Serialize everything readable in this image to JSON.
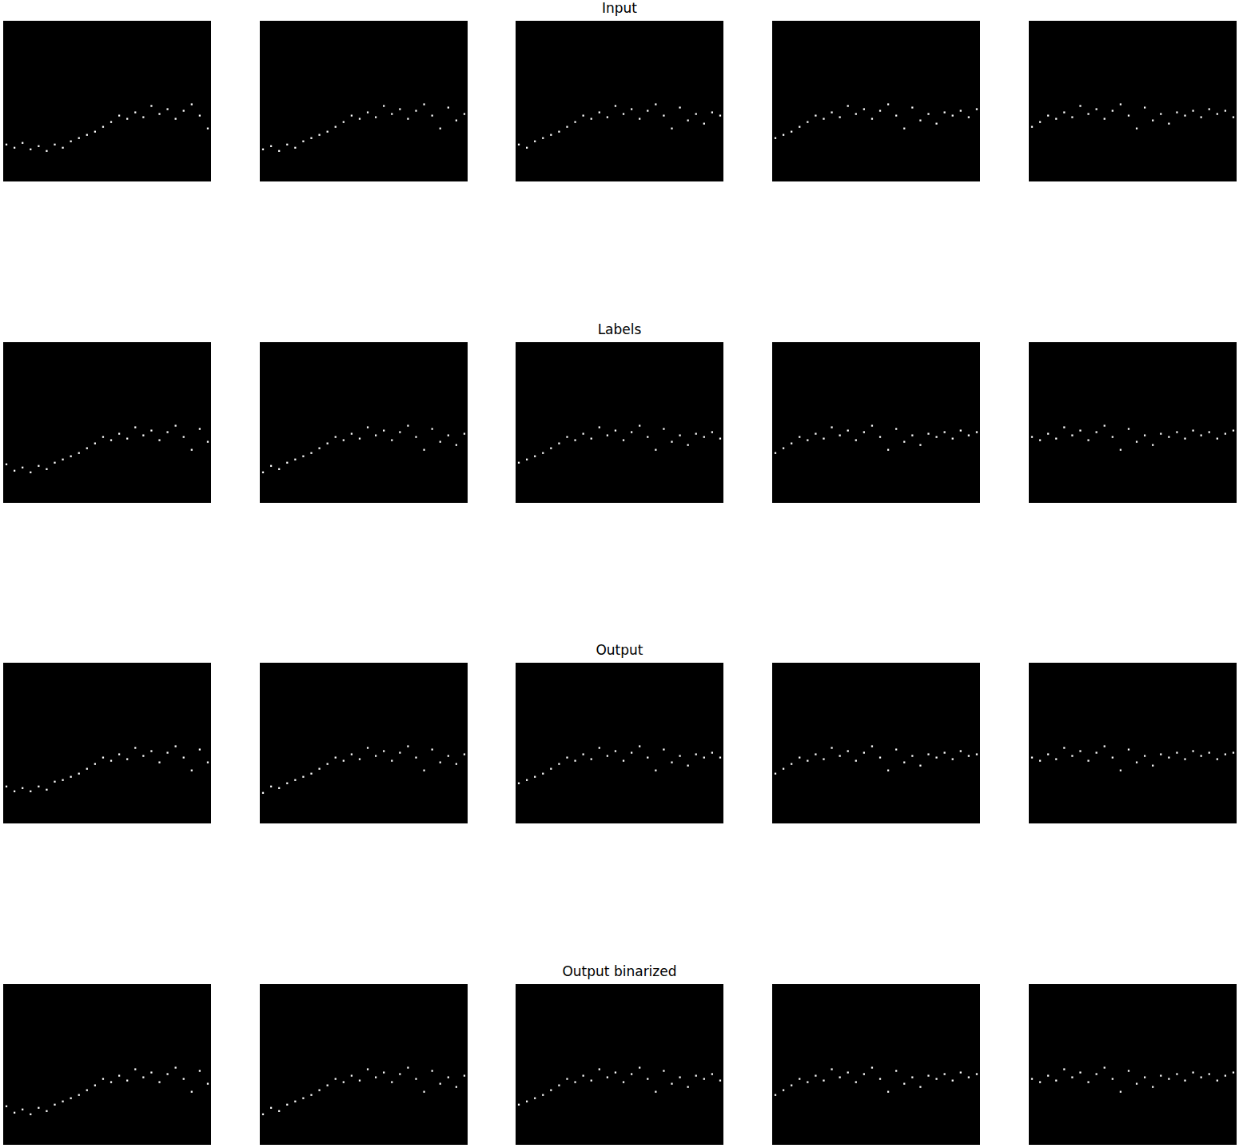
{
  "chart_data": [
    {
      "type": "scatter",
      "x": [
        0,
        5,
        10,
        15,
        20,
        25,
        30,
        35,
        40,
        45,
        50,
        55,
        60,
        65,
        70,
        75,
        80,
        85,
        90,
        95,
        100,
        105,
        110,
        115,
        120,
        125
      ],
      "values": [
        23,
        21,
        24,
        20,
        22,
        19,
        23,
        21,
        25,
        27,
        29,
        31,
        34,
        37,
        41,
        39,
        43,
        40,
        47,
        42,
        45,
        39,
        44,
        48,
        41,
        33
      ],
      "xlim": [
        -2,
        127
      ],
      "ylim": [
        0,
        100
      ],
      "color": "#ffffff",
      "marker": "square",
      "tick_labels": false
    },
    {
      "type": "scatter",
      "x": [
        0,
        5,
        10,
        15,
        20,
        25,
        30,
        35,
        40,
        45,
        50,
        55,
        60,
        65,
        70,
        75,
        80,
        85,
        90,
        95,
        100,
        105,
        110,
        115,
        120,
        125
      ],
      "values": [
        20,
        22,
        19,
        23,
        21,
        25,
        27,
        29,
        31,
        34,
        37,
        41,
        39,
        43,
        40,
        47,
        42,
        45,
        39,
        44,
        48,
        41,
        33,
        46,
        38,
        42
      ],
      "xlim": [
        -2,
        127
      ],
      "ylim": [
        0,
        100
      ],
      "color": "#ffffff",
      "marker": "square",
      "tick_labels": false
    },
    {
      "type": "scatter",
      "title": "Input",
      "x": [
        0,
        5,
        10,
        15,
        20,
        25,
        30,
        35,
        40,
        45,
        50,
        55,
        60,
        65,
        70,
        75,
        80,
        85,
        90,
        95,
        100,
        105,
        110,
        115,
        120,
        125
      ],
      "values": [
        23,
        21,
        25,
        27,
        29,
        31,
        34,
        37,
        41,
        39,
        43,
        40,
        47,
        42,
        45,
        39,
        44,
        48,
        41,
        33,
        46,
        38,
        42,
        36,
        43,
        41
      ],
      "xlim": [
        -2,
        127
      ],
      "ylim": [
        0,
        100
      ],
      "color": "#ffffff",
      "marker": "square",
      "tick_labels": false
    },
    {
      "type": "scatter",
      "x": [
        0,
        5,
        10,
        15,
        20,
        25,
        30,
        35,
        40,
        45,
        50,
        55,
        60,
        65,
        70,
        75,
        80,
        85,
        90,
        95,
        100,
        105,
        110,
        115,
        120,
        125
      ],
      "values": [
        27,
        29,
        31,
        34,
        37,
        41,
        39,
        43,
        40,
        47,
        42,
        45,
        39,
        44,
        48,
        41,
        33,
        46,
        38,
        42,
        36,
        43,
        41,
        44,
        40,
        45
      ],
      "xlim": [
        -2,
        127
      ],
      "ylim": [
        0,
        100
      ],
      "color": "#ffffff",
      "marker": "square",
      "tick_labels": false
    },
    {
      "type": "scatter",
      "x": [
        0,
        5,
        10,
        15,
        20,
        25,
        30,
        35,
        40,
        45,
        50,
        55,
        60,
        65,
        70,
        75,
        80,
        85,
        90,
        95,
        100,
        105,
        110,
        115,
        120,
        125
      ],
      "values": [
        34,
        37,
        41,
        39,
        43,
        40,
        47,
        42,
        45,
        39,
        44,
        48,
        41,
        33,
        46,
        38,
        42,
        36,
        43,
        41,
        44,
        40,
        45,
        42,
        44,
        40
      ],
      "xlim": [
        -2,
        127
      ],
      "ylim": [
        0,
        100
      ],
      "color": "#ffffff",
      "marker": "square",
      "tick_labels": false
    },
    {
      "type": "scatter",
      "x": [
        0,
        5,
        10,
        15,
        20,
        25,
        30,
        35,
        40,
        45,
        50,
        55,
        60,
        65,
        70,
        75,
        80,
        85,
        90,
        95,
        100,
        105,
        110,
        115,
        120,
        125
      ],
      "values": [
        24,
        20,
        22,
        19,
        23,
        21,
        25,
        27,
        29,
        31,
        34,
        37,
        41,
        39,
        43,
        40,
        47,
        42,
        45,
        39,
        44,
        48,
        41,
        33,
        46,
        38
      ],
      "xlim": [
        -2,
        127
      ],
      "ylim": [
        0,
        100
      ],
      "color": "#ffffff",
      "marker": "square",
      "tick_labels": false
    },
    {
      "type": "scatter",
      "x": [
        0,
        5,
        10,
        15,
        20,
        25,
        30,
        35,
        40,
        45,
        50,
        55,
        60,
        65,
        70,
        75,
        80,
        85,
        90,
        95,
        100,
        105,
        110,
        115,
        120,
        125
      ],
      "values": [
        19,
        23,
        21,
        25,
        27,
        29,
        31,
        34,
        37,
        41,
        39,
        43,
        40,
        47,
        42,
        45,
        39,
        44,
        48,
        41,
        33,
        46,
        38,
        42,
        36,
        43
      ],
      "xlim": [
        -2,
        127
      ],
      "ylim": [
        0,
        100
      ],
      "color": "#ffffff",
      "marker": "square",
      "tick_labels": false
    },
    {
      "type": "scatter",
      "title": "Labels",
      "x": [
        0,
        5,
        10,
        15,
        20,
        25,
        30,
        35,
        40,
        45,
        50,
        55,
        60,
        65,
        70,
        75,
        80,
        85,
        90,
        95,
        100,
        105,
        110,
        115,
        120,
        125
      ],
      "values": [
        25,
        27,
        29,
        31,
        34,
        37,
        41,
        39,
        43,
        40,
        47,
        42,
        45,
        39,
        44,
        48,
        41,
        33,
        46,
        38,
        42,
        36,
        43,
        41,
        44,
        40
      ],
      "xlim": [
        -2,
        127
      ],
      "ylim": [
        0,
        100
      ],
      "color": "#ffffff",
      "marker": "square",
      "tick_labels": false
    },
    {
      "type": "scatter",
      "x": [
        0,
        5,
        10,
        15,
        20,
        25,
        30,
        35,
        40,
        45,
        50,
        55,
        60,
        65,
        70,
        75,
        80,
        85,
        90,
        95,
        100,
        105,
        110,
        115,
        120,
        125
      ],
      "values": [
        31,
        34,
        37,
        41,
        39,
        43,
        40,
        47,
        42,
        45,
        39,
        44,
        48,
        41,
        33,
        46,
        38,
        42,
        36,
        43,
        41,
        44,
        40,
        45,
        42,
        44
      ],
      "xlim": [
        -2,
        127
      ],
      "ylim": [
        0,
        100
      ],
      "color": "#ffffff",
      "marker": "square",
      "tick_labels": false
    },
    {
      "type": "scatter",
      "x": [
        0,
        5,
        10,
        15,
        20,
        25,
        30,
        35,
        40,
        45,
        50,
        55,
        60,
        65,
        70,
        75,
        80,
        85,
        90,
        95,
        100,
        105,
        110,
        115,
        120,
        125
      ],
      "values": [
        41,
        39,
        43,
        40,
        47,
        42,
        45,
        39,
        44,
        48,
        41,
        33,
        46,
        38,
        42,
        36,
        43,
        41,
        44,
        40,
        45,
        42,
        44,
        40,
        43,
        45
      ],
      "xlim": [
        -2,
        127
      ],
      "ylim": [
        0,
        100
      ],
      "color": "#ffffff",
      "marker": "square",
      "tick_labels": false
    },
    {
      "type": "scatter",
      "x": [
        0,
        5,
        10,
        15,
        20,
        25,
        30,
        35,
        40,
        45,
        50,
        55,
        60,
        65,
        70,
        75,
        80,
        85,
        90,
        95,
        100,
        105,
        110,
        115,
        120,
        125
      ],
      "values": [
        23,
        20,
        22,
        20,
        23,
        21,
        26,
        27,
        29,
        31,
        34,
        37,
        41,
        39,
        43,
        40,
        47,
        42,
        45,
        38,
        44,
        48,
        41,
        33,
        46,
        38
      ],
      "xlim": [
        -2,
        127
      ],
      "ylim": [
        0,
        100
      ],
      "color": "#ffffff",
      "marker": "square",
      "tick_labels": false
    },
    {
      "type": "scatter",
      "x": [
        0,
        5,
        10,
        15,
        20,
        25,
        30,
        35,
        40,
        45,
        50,
        55,
        60,
        65,
        70,
        75,
        80,
        85,
        90,
        95,
        100,
        105,
        110,
        115,
        120,
        125
      ],
      "values": [
        19,
        23,
        22,
        25,
        27,
        29,
        31,
        34,
        37,
        41,
        39,
        43,
        40,
        47,
        42,
        45,
        39,
        44,
        48,
        41,
        33,
        46,
        38,
        42,
        37,
        43
      ],
      "xlim": [
        -2,
        127
      ],
      "ylim": [
        0,
        100
      ],
      "color": "#ffffff",
      "marker": "square",
      "tick_labels": false
    },
    {
      "type": "scatter",
      "title": "Output",
      "x": [
        0,
        5,
        10,
        15,
        20,
        25,
        30,
        35,
        40,
        45,
        50,
        55,
        60,
        65,
        70,
        75,
        80,
        85,
        90,
        95,
        100,
        105,
        110,
        115,
        120,
        125
      ],
      "values": [
        25,
        27,
        29,
        31,
        34,
        37,
        41,
        39,
        43,
        40,
        47,
        42,
        45,
        39,
        44,
        48,
        41,
        33,
        46,
        38,
        42,
        36,
        43,
        41,
        44,
        41
      ],
      "xlim": [
        -2,
        127
      ],
      "ylim": [
        0,
        100
      ],
      "color": "#ffffff",
      "marker": "square",
      "tick_labels": false
    },
    {
      "type": "scatter",
      "x": [
        0,
        5,
        10,
        15,
        20,
        25,
        30,
        35,
        40,
        45,
        50,
        55,
        60,
        65,
        70,
        75,
        80,
        85,
        90,
        95,
        100,
        105,
        110,
        115,
        120,
        125
      ],
      "values": [
        31,
        34,
        37,
        41,
        39,
        43,
        40,
        47,
        42,
        45,
        39,
        44,
        48,
        41,
        33,
        46,
        38,
        42,
        36,
        43,
        41,
        44,
        40,
        45,
        42,
        43
      ],
      "xlim": [
        -2,
        127
      ],
      "ylim": [
        0,
        100
      ],
      "color": "#ffffff",
      "marker": "square",
      "tick_labels": false
    },
    {
      "type": "scatter",
      "x": [
        0,
        5,
        10,
        15,
        20,
        25,
        30,
        35,
        40,
        45,
        50,
        55,
        60,
        65,
        70,
        75,
        80,
        85,
        90,
        95,
        100,
        105,
        110,
        115,
        120,
        125
      ],
      "values": [
        41,
        39,
        43,
        40,
        47,
        42,
        45,
        39,
        44,
        48,
        41,
        33,
        46,
        38,
        42,
        36,
        43,
        41,
        44,
        40,
        45,
        42,
        44,
        40,
        43,
        44
      ],
      "xlim": [
        -2,
        127
      ],
      "ylim": [
        0,
        100
      ],
      "color": "#ffffff",
      "marker": "square",
      "tick_labels": false
    },
    {
      "type": "scatter",
      "x": [
        0,
        5,
        10,
        15,
        20,
        25,
        30,
        35,
        40,
        45,
        50,
        55,
        60,
        65,
        70,
        75,
        80,
        85,
        90,
        95,
        100,
        105,
        110,
        115,
        120,
        125
      ],
      "values": [
        24,
        20,
        22,
        19,
        23,
        21,
        25,
        27,
        29,
        31,
        34,
        37,
        41,
        39,
        43,
        40,
        47,
        42,
        45,
        39,
        44,
        48,
        41,
        33,
        46,
        38
      ],
      "xlim": [
        -2,
        127
      ],
      "ylim": [
        0,
        100
      ],
      "color": "#ffffff",
      "marker": "square",
      "tick_labels": false
    },
    {
      "type": "scatter",
      "x": [
        0,
        5,
        10,
        15,
        20,
        25,
        30,
        35,
        40,
        45,
        50,
        55,
        60,
        65,
        70,
        75,
        80,
        85,
        90,
        95,
        100,
        105,
        110,
        115,
        120,
        125
      ],
      "values": [
        19,
        23,
        21,
        25,
        27,
        29,
        31,
        34,
        37,
        41,
        39,
        43,
        40,
        47,
        42,
        45,
        39,
        44,
        48,
        41,
        33,
        46,
        38,
        42,
        36,
        43
      ],
      "xlim": [
        -2,
        127
      ],
      "ylim": [
        0,
        100
      ],
      "color": "#ffffff",
      "marker": "square",
      "tick_labels": false
    },
    {
      "type": "scatter",
      "title": "Output binarized",
      "x": [
        0,
        5,
        10,
        15,
        20,
        25,
        30,
        35,
        40,
        45,
        50,
        55,
        60,
        65,
        70,
        75,
        80,
        85,
        90,
        95,
        100,
        105,
        110,
        115,
        120,
        125
      ],
      "values": [
        25,
        27,
        29,
        31,
        34,
        37,
        41,
        39,
        43,
        40,
        47,
        42,
        45,
        39,
        44,
        48,
        41,
        33,
        46,
        38,
        42,
        36,
        43,
        41,
        44,
        40
      ],
      "xlim": [
        -2,
        127
      ],
      "ylim": [
        0,
        100
      ],
      "color": "#ffffff",
      "marker": "square",
      "tick_labels": false
    },
    {
      "type": "scatter",
      "x": [
        0,
        5,
        10,
        15,
        20,
        25,
        30,
        35,
        40,
        45,
        50,
        55,
        60,
        65,
        70,
        75,
        80,
        85,
        90,
        95,
        100,
        105,
        110,
        115,
        120,
        125
      ],
      "values": [
        31,
        34,
        37,
        41,
        39,
        43,
        40,
        47,
        42,
        45,
        39,
        44,
        48,
        41,
        33,
        46,
        38,
        42,
        36,
        43,
        41,
        44,
        40,
        45,
        42,
        44
      ],
      "xlim": [
        -2,
        127
      ],
      "ylim": [
        0,
        100
      ],
      "color": "#ffffff",
      "marker": "square",
      "tick_labels": false
    },
    {
      "type": "scatter",
      "x": [
        0,
        5,
        10,
        15,
        20,
        25,
        30,
        35,
        40,
        45,
        50,
        55,
        60,
        65,
        70,
        75,
        80,
        85,
        90,
        95,
        100,
        105,
        110,
        115,
        120,
        125
      ],
      "values": [
        41,
        39,
        43,
        40,
        47,
        42,
        45,
        39,
        44,
        48,
        41,
        33,
        46,
        38,
        42,
        36,
        43,
        41,
        44,
        40,
        45,
        42,
        44,
        40,
        43,
        45
      ],
      "xlim": [
        -2,
        127
      ],
      "ylim": [
        0,
        100
      ],
      "color": "#ffffff",
      "marker": "square",
      "tick_labels": false
    }
  ]
}
